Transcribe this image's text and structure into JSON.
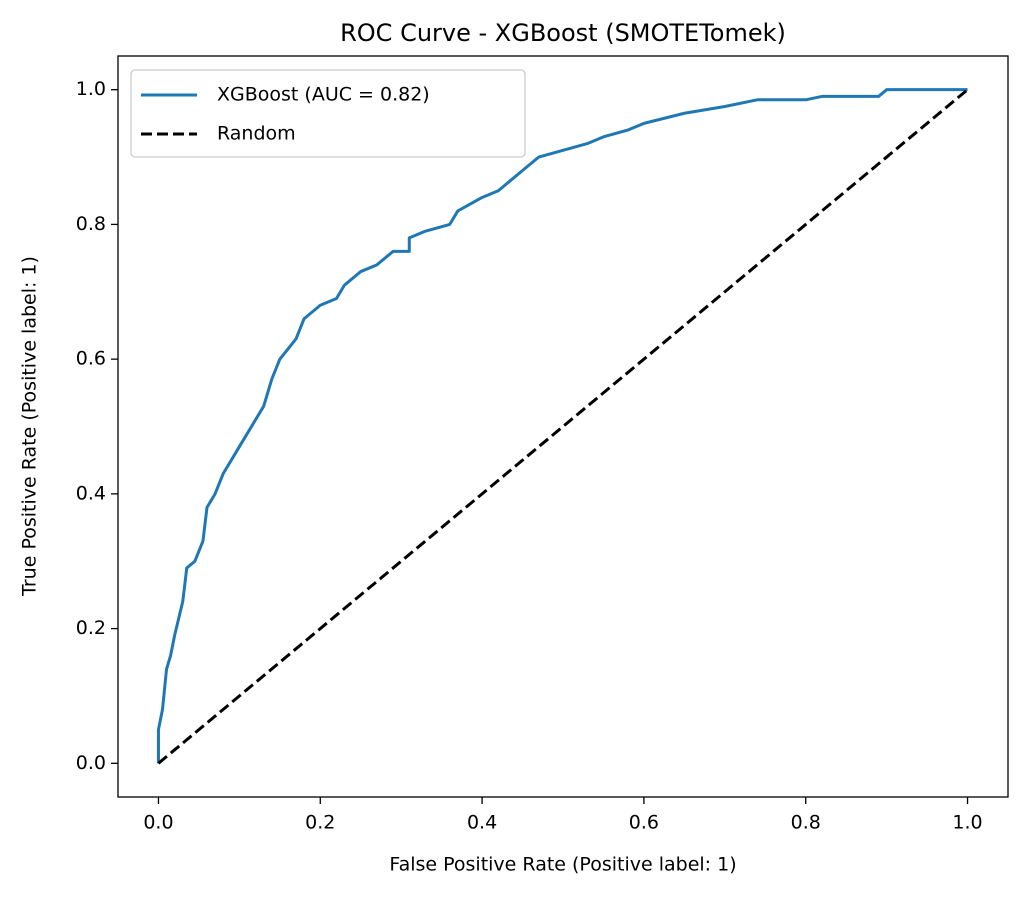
{
  "chart_data": {
    "type": "line",
    "title": "ROC Curve - XGBoost (SMOTETomek)",
    "xlabel": "False Positive Rate (Positive label: 1)",
    "ylabel": "True Positive Rate (Positive label: 1)",
    "xlim": [
      -0.05,
      1.05
    ],
    "ylim": [
      -0.05,
      1.05
    ],
    "xticks": [
      {
        "value": 0,
        "label": "0.0"
      },
      0.2,
      0.4,
      0.6,
      0.8,
      {
        "value": 1,
        "label": "1.0"
      }
    ],
    "yticks": [
      {
        "value": 0,
        "label": "0.0"
      },
      0.2,
      0.4,
      0.6,
      0.8,
      {
        "value": 1,
        "label": "1.0"
      }
    ],
    "legend": "upper left",
    "series": [
      {
        "name": "XGBoost (AUC = 0.82)",
        "color": "#1f77b4",
        "dashed": false,
        "x": [
          0,
          0,
          0.005,
          0.01,
          0.015,
          0.02,
          0.03,
          0.035,
          0.045,
          0.055,
          0.06,
          0.07,
          0.08,
          0.09,
          0.1,
          0.12,
          0.13,
          0.14,
          0.15,
          0.17,
          0.18,
          0.2,
          0.22,
          0.23,
          0.25,
          0.27,
          0.29,
          0.31,
          0.31,
          0.33,
          0.36,
          0.37,
          0.4,
          0.42,
          0.43,
          0.45,
          0.46,
          0.47,
          0.5,
          0.53,
          0.55,
          0.58,
          0.6,
          0.65,
          0.7,
          0.74,
          0.8,
          0.82,
          0.89,
          0.9,
          1
        ],
        "values": [
          0,
          0.05,
          0.08,
          0.14,
          0.16,
          0.19,
          0.24,
          0.29,
          0.3,
          0.33,
          0.38,
          0.4,
          0.43,
          0.45,
          0.47,
          0.51,
          0.53,
          0.57,
          0.6,
          0.63,
          0.66,
          0.68,
          0.69,
          0.71,
          0.73,
          0.74,
          0.76,
          0.76,
          0.78,
          0.79,
          0.8,
          0.82,
          0.84,
          0.85,
          0.86,
          0.88,
          0.89,
          0.9,
          0.91,
          0.92,
          0.93,
          0.94,
          0.95,
          0.965,
          0.975,
          0.985,
          0.985,
          0.99,
          0.99,
          1,
          1
        ]
      },
      {
        "name": "Random",
        "color": "#000000",
        "dashed": true,
        "x": [
          0,
          1
        ],
        "values": [
          0,
          1
        ]
      }
    ]
  }
}
